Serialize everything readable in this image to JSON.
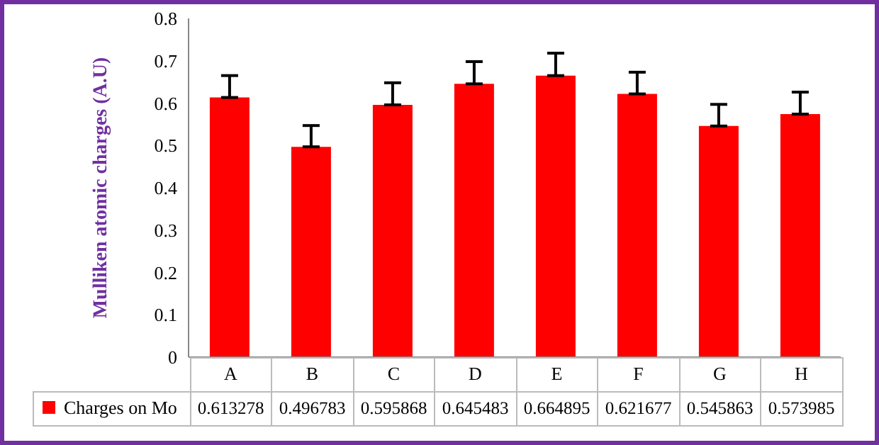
{
  "chart_data": {
    "type": "bar",
    "ylabel": "Mulliken atomic charges (A.U)",
    "categories": [
      "A",
      "B",
      "C",
      "D",
      "E",
      "F",
      "G",
      "H"
    ],
    "series": [
      {
        "name": "Charges on Mo",
        "color": "#ff0000",
        "values": [
          0.613278,
          0.496783,
          0.595868,
          0.645483,
          0.664895,
          0.621677,
          0.545863,
          0.573985
        ],
        "errors": [
          [
            0.613278,
            0.665
          ],
          [
            0.496783,
            0.547
          ],
          [
            0.595868,
            0.648
          ],
          [
            0.645483,
            0.698
          ],
          [
            0.664895,
            0.718
          ],
          [
            0.621677,
            0.673
          ],
          [
            0.545863,
            0.597
          ],
          [
            0.573985,
            0.626
          ]
        ]
      }
    ],
    "ylim": [
      0,
      0.8
    ],
    "yticks": [
      0,
      0.1,
      0.2,
      0.3,
      0.4,
      0.5,
      0.6,
      0.7,
      0.8
    ],
    "grid": false,
    "legend": "bottom",
    "data_labels": true
  }
}
